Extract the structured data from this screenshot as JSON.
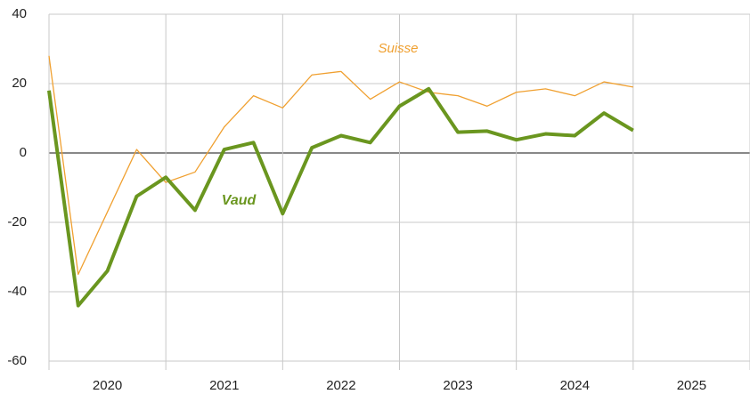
{
  "chart_data": {
    "type": "line",
    "x": [
      2020,
      2020.25,
      2020.5,
      2020.75,
      2021,
      2021.25,
      2021.5,
      2021.75,
      2022,
      2022.25,
      2022.5,
      2022.75,
      2023,
      2023.25,
      2023.5,
      2023.75,
      2024,
      2024.25,
      2024.5,
      2024.75,
      2025
    ],
    "series": [
      {
        "name": "Suisse",
        "color": "#f0a030",
        "width": 1.3,
        "values": [
          28,
          -35,
          -17,
          1,
          -8.5,
          -5.5,
          7.5,
          16.5,
          13,
          22.5,
          23.5,
          15.5,
          20.5,
          17.5,
          16.5,
          13.5,
          17.5,
          18.5,
          16.5,
          20.5,
          19
        ]
      },
      {
        "name": "Vaud",
        "color": "#6a961f",
        "width": 4,
        "values": [
          18,
          -44,
          -34,
          -12.5,
          -7,
          -16.5,
          1,
          3,
          -17.5,
          1.5,
          5,
          3,
          13.5,
          18.5,
          6,
          6.3,
          3.8,
          5.5,
          5,
          11.5,
          6.5
        ]
      }
    ],
    "xlim": [
      2020,
      2026
    ],
    "xticks": [
      {
        "value": 2020.5,
        "label": "2020"
      },
      {
        "value": 2021.5,
        "label": "2021"
      },
      {
        "value": 2022.5,
        "label": "2022"
      },
      {
        "value": 2023.5,
        "label": "2023"
      },
      {
        "value": 2024.5,
        "label": "2024"
      },
      {
        "value": 2025.5,
        "label": "2025"
      }
    ],
    "x_gridlines": [
      2020,
      2021,
      2022,
      2023,
      2024,
      2025,
      2026
    ],
    "ylim": [
      -60,
      40
    ],
    "yticks": [
      -60,
      -40,
      -20,
      0,
      20,
      40
    ],
    "grid": true
  }
}
